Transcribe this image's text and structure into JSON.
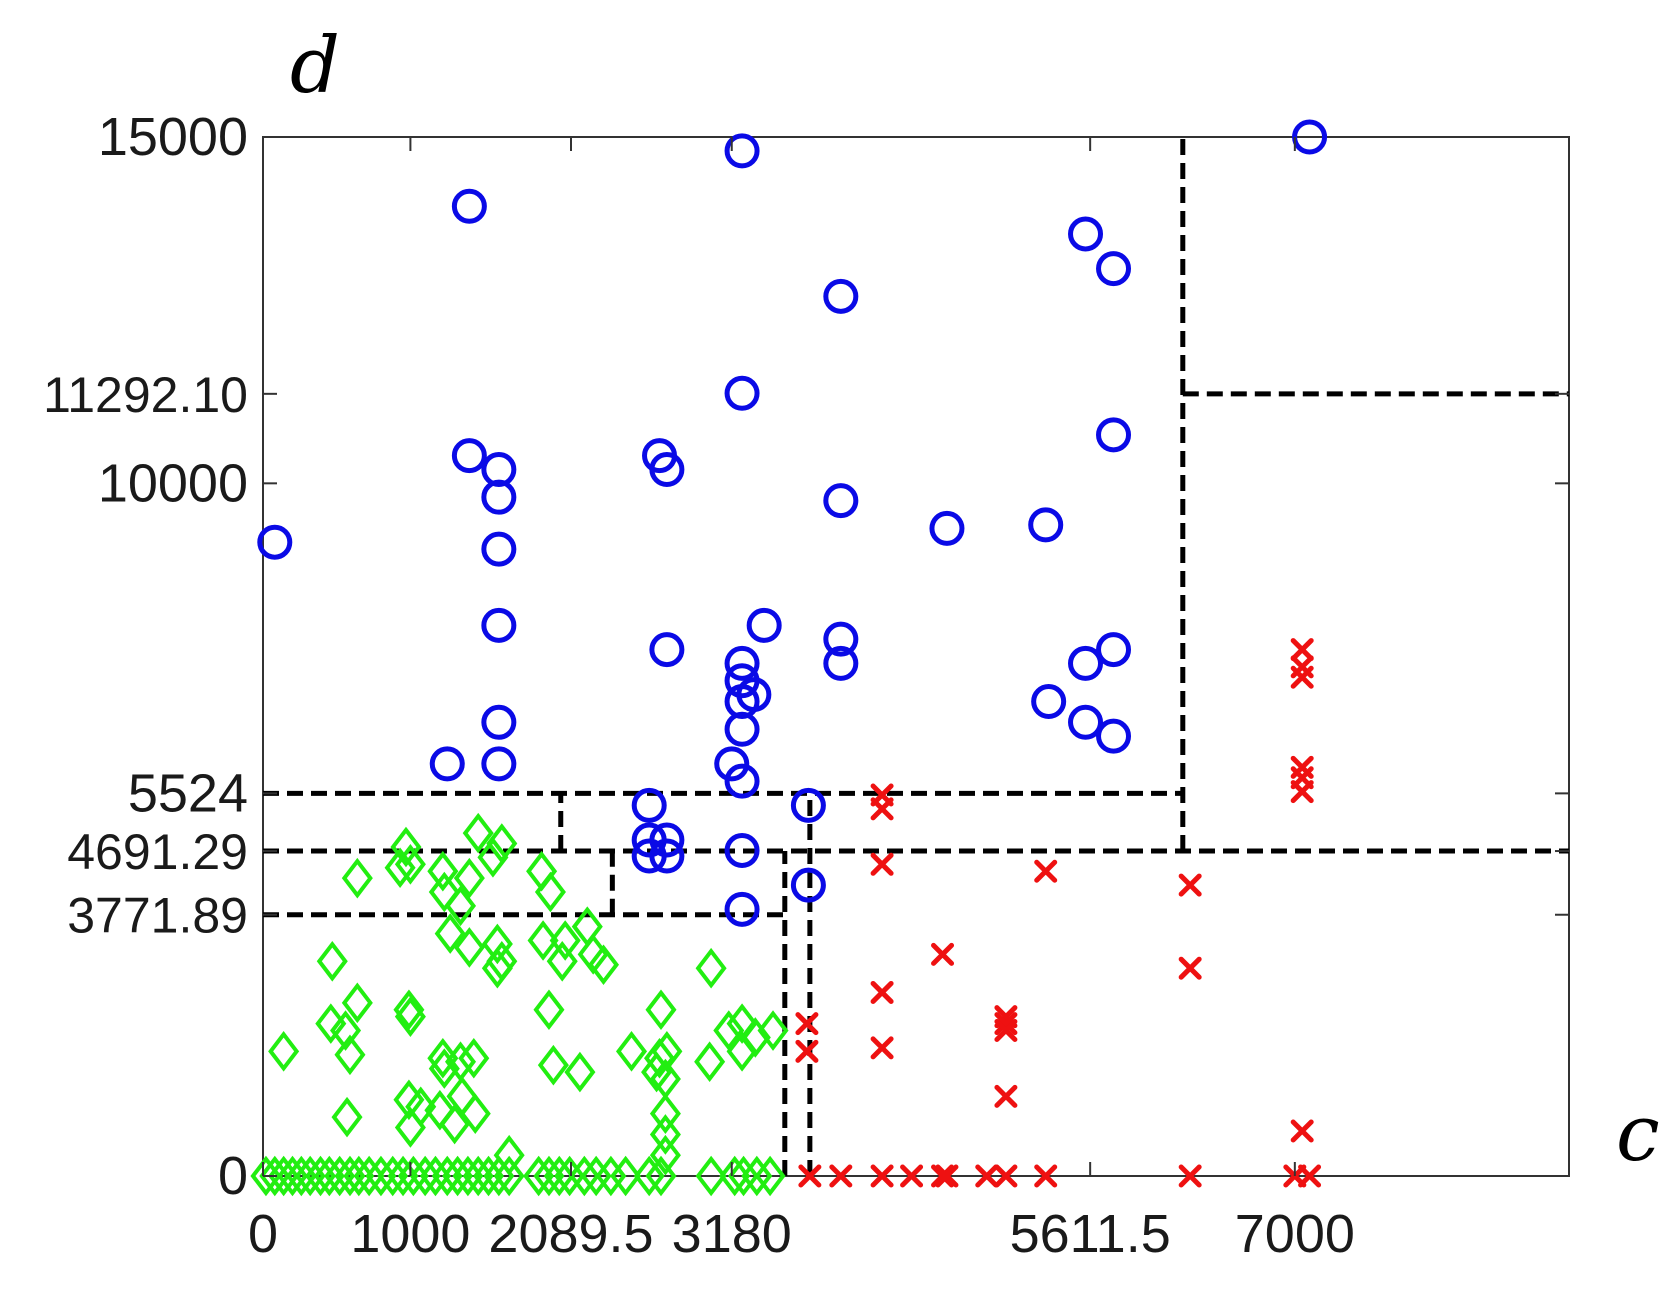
{
  "chart_data": {
    "type": "scatter",
    "xlabel": "c",
    "ylabel": "d",
    "xlim": [
      0,
      8860
    ],
    "ylim": [
      0,
      15000
    ],
    "x_ticks": [
      {
        "value": 0,
        "label": "0"
      },
      {
        "value": 1000,
        "label": "1000"
      },
      {
        "value": 2089.5,
        "label": "2089.5"
      },
      {
        "value": 3180,
        "label": "3180"
      },
      {
        "value": 5611.5,
        "label": "5611.5"
      },
      {
        "value": 7000,
        "label": "7000"
      }
    ],
    "y_ticks": [
      {
        "value": 0,
        "label": "0"
      },
      {
        "value": 3771.89,
        "label": "3771.89"
      },
      {
        "value": 4691.29,
        "label": "4691.29"
      },
      {
        "value": 5524,
        "label": "5524"
      },
      {
        "value": 10000,
        "label": "10000"
      },
      {
        "value": 11292.1,
        "label": "11292.10"
      },
      {
        "value": 15000,
        "label": "15000"
      }
    ],
    "boundaries": [
      {
        "kind": "h",
        "y": 5524,
        "x0": 0,
        "x1": 6240
      },
      {
        "kind": "v",
        "x": 2020,
        "y0": 4691.29,
        "y1": 5524
      },
      {
        "kind": "h",
        "y": 4691.29,
        "x0": 0,
        "x1": 8860
      },
      {
        "kind": "v",
        "x": 2370,
        "y0": 3771.89,
        "y1": 4691.29
      },
      {
        "kind": "h",
        "y": 3771.89,
        "x0": 0,
        "x1": 3540
      },
      {
        "kind": "v",
        "x": 3540,
        "y0": 0,
        "y1": 4691.29
      },
      {
        "kind": "v",
        "x": 3710,
        "y0": 0,
        "y1": 5524
      },
      {
        "kind": "v",
        "x": 6240,
        "y0": 4691.29,
        "y1": 15000
      },
      {
        "kind": "h",
        "y": 11292.1,
        "x0": 6240,
        "x1": 8860
      }
    ],
    "series": [
      {
        "marker": "circle",
        "color": "#0a0ae6",
        "points": [
          [
            80,
            9150
          ],
          [
            1400,
            14000
          ],
          [
            3250,
            14800
          ],
          [
            7100,
            15000
          ],
          [
            5580,
            13600
          ],
          [
            5770,
            13100
          ],
          [
            3920,
            12700
          ],
          [
            3250,
            11300
          ],
          [
            5770,
            10700
          ],
          [
            1400,
            10400
          ],
          [
            1600,
            10200
          ],
          [
            2690,
            10400
          ],
          [
            2740,
            10200
          ],
          [
            1600,
            9800
          ],
          [
            1600,
            9050
          ],
          [
            3920,
            9750
          ],
          [
            4640,
            9350
          ],
          [
            5310,
            9400
          ],
          [
            1600,
            7950
          ],
          [
            3400,
            7950
          ],
          [
            3920,
            7750
          ],
          [
            2740,
            7600
          ],
          [
            3250,
            7400
          ],
          [
            3920,
            7400
          ],
          [
            5580,
            7400
          ],
          [
            5770,
            7600
          ],
          [
            3250,
            7150
          ],
          [
            3330,
            6950
          ],
          [
            3250,
            6850
          ],
          [
            5330,
            6850
          ],
          [
            1600,
            6550
          ],
          [
            3250,
            6450
          ],
          [
            5580,
            6550
          ],
          [
            5770,
            6350
          ],
          [
            1250,
            5950
          ],
          [
            1600,
            5950
          ],
          [
            3180,
            5950
          ],
          [
            3250,
            5700
          ],
          [
            2620,
            5350
          ],
          [
            3700,
            5350
          ],
          [
            2620,
            4850
          ],
          [
            2740,
            4850
          ],
          [
            2620,
            4620
          ],
          [
            2740,
            4620
          ],
          [
            3250,
            4700
          ],
          [
            3700,
            4200
          ],
          [
            3250,
            3850
          ]
        ]
      },
      {
        "marker": "cross",
        "color": "#ee1111",
        "points": [
          [
            7050,
            7600
          ],
          [
            7050,
            7350
          ],
          [
            7050,
            7200
          ],
          [
            7050,
            5900
          ],
          [
            7050,
            5750
          ],
          [
            7050,
            5550
          ],
          [
            4200,
            5500
          ],
          [
            4200,
            5300
          ],
          [
            4200,
            4500
          ],
          [
            5310,
            4400
          ],
          [
            6290,
            4200
          ],
          [
            6290,
            3000
          ],
          [
            4610,
            3200
          ],
          [
            4200,
            2650
          ],
          [
            5040,
            2300
          ],
          [
            5040,
            2200
          ],
          [
            5040,
            2100
          ],
          [
            3690,
            2200
          ],
          [
            3690,
            1800
          ],
          [
            4200,
            1850
          ],
          [
            5040,
            1150
          ],
          [
            7050,
            650
          ],
          [
            3710,
            0
          ],
          [
            3920,
            0
          ],
          [
            4200,
            0
          ],
          [
            4400,
            0
          ],
          [
            4610,
            0
          ],
          [
            4640,
            0
          ],
          [
            4910,
            0
          ],
          [
            5040,
            0
          ],
          [
            5310,
            0
          ],
          [
            6290,
            0
          ],
          [
            7000,
            0
          ],
          [
            7100,
            0
          ]
        ]
      },
      {
        "marker": "diamond",
        "color": "#22ee11",
        "points": [
          [
            1460,
            4950
          ],
          [
            1620,
            4800
          ],
          [
            970,
            4750
          ],
          [
            1000,
            4500
          ],
          [
            1220,
            4400
          ],
          [
            1400,
            4300
          ],
          [
            1560,
            4600
          ],
          [
            1890,
            4400
          ],
          [
            640,
            4300
          ],
          [
            930,
            4450
          ],
          [
            1950,
            4100
          ],
          [
            1230,
            4100
          ],
          [
            1340,
            3900
          ],
          [
            1270,
            3500
          ],
          [
            1400,
            3300
          ],
          [
            1590,
            3350
          ],
          [
            1620,
            3100
          ],
          [
            1590,
            3000
          ],
          [
            1900,
            3400
          ],
          [
            2050,
            3400
          ],
          [
            2200,
            3600
          ],
          [
            2240,
            3200
          ],
          [
            2310,
            3050
          ],
          [
            2030,
            3100
          ],
          [
            470,
            3100
          ],
          [
            3040,
            3000
          ],
          [
            1940,
            2400
          ],
          [
            2700,
            2400
          ],
          [
            640,
            2500
          ],
          [
            990,
            2400
          ],
          [
            1000,
            2300
          ],
          [
            460,
            2200
          ],
          [
            560,
            2100
          ],
          [
            140,
            1800
          ],
          [
            590,
            1750
          ],
          [
            2500,
            1800
          ],
          [
            2690,
            1700
          ],
          [
            2740,
            1800
          ],
          [
            3030,
            1650
          ],
          [
            3160,
            2100
          ],
          [
            3250,
            2200
          ],
          [
            3340,
            2000
          ],
          [
            3460,
            2100
          ],
          [
            3250,
            1800
          ],
          [
            1220,
            1700
          ],
          [
            1230,
            1550
          ],
          [
            1340,
            1650
          ],
          [
            1430,
            1700
          ],
          [
            1970,
            1600
          ],
          [
            2150,
            1500
          ],
          [
            2670,
            1500
          ],
          [
            2730,
            1400
          ],
          [
            990,
            1100
          ],
          [
            1070,
            1000
          ],
          [
            1200,
            950
          ],
          [
            1350,
            1150
          ],
          [
            1440,
            900
          ],
          [
            570,
            850
          ],
          [
            1000,
            700
          ],
          [
            1300,
            750
          ],
          [
            2730,
            900
          ],
          [
            2730,
            600
          ],
          [
            1670,
            300
          ],
          [
            2730,
            300
          ],
          [
            20,
            0
          ],
          [
            80,
            0
          ],
          [
            140,
            0
          ],
          [
            200,
            0
          ],
          [
            260,
            0
          ],
          [
            320,
            0
          ],
          [
            390,
            0
          ],
          [
            450,
            0
          ],
          [
            520,
            0
          ],
          [
            590,
            0
          ],
          [
            650,
            0
          ],
          [
            720,
            0
          ],
          [
            800,
            0
          ],
          [
            880,
            0
          ],
          [
            950,
            0
          ],
          [
            1020,
            0
          ],
          [
            1100,
            0
          ],
          [
            1170,
            0
          ],
          [
            1250,
            0
          ],
          [
            1320,
            0
          ],
          [
            1390,
            0
          ],
          [
            1460,
            0
          ],
          [
            1530,
            0
          ],
          [
            1600,
            0
          ],
          [
            1670,
            0
          ],
          [
            1870,
            0
          ],
          [
            1940,
            0
          ],
          [
            2010,
            0
          ],
          [
            2080,
            0
          ],
          [
            2180,
            0
          ],
          [
            2260,
            0
          ],
          [
            2360,
            0
          ],
          [
            2460,
            0
          ],
          [
            2620,
            0
          ],
          [
            2700,
            0
          ],
          [
            3040,
            0
          ],
          [
            3200,
            0
          ],
          [
            3260,
            0
          ],
          [
            3350,
            0
          ],
          [
            3440,
            0
          ]
        ]
      }
    ]
  }
}
